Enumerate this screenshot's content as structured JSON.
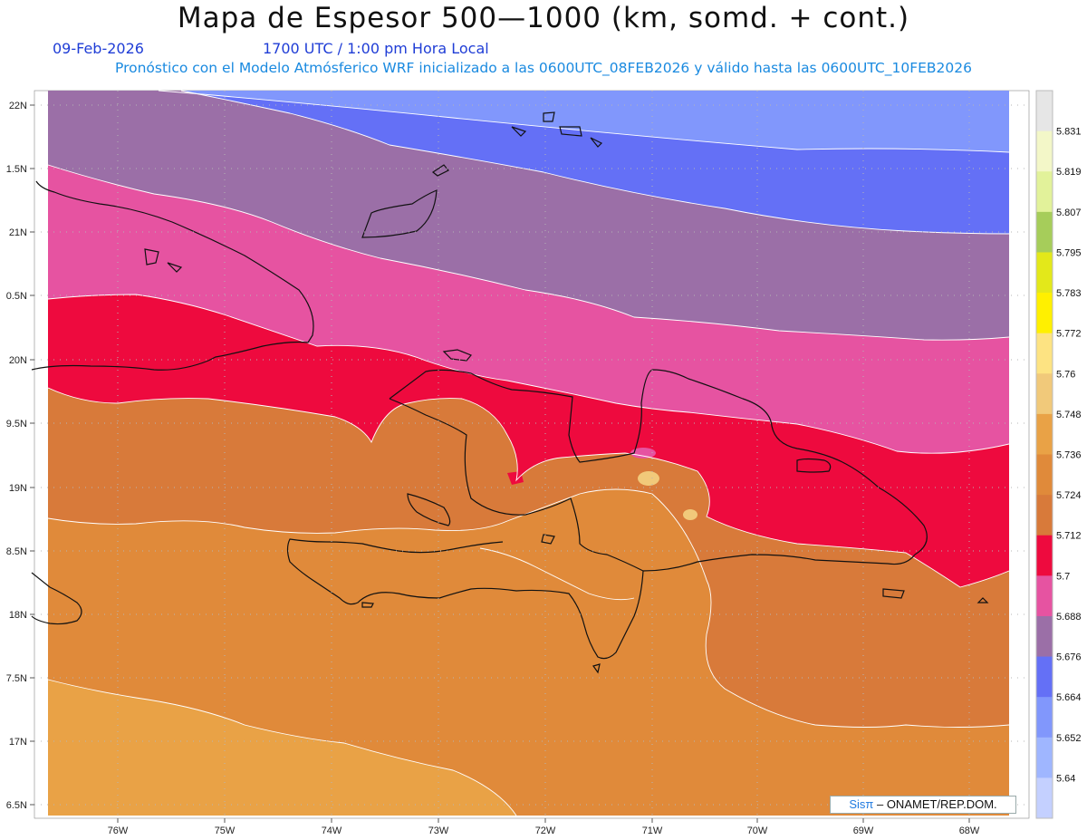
{
  "header": {
    "title": "Mapa de Espesor 500—1000 (km, somd. + cont.)",
    "date": "09-Feb-2026",
    "time": "1700 UTC / 1:00 pm Hora Local",
    "description": "Pronóstico con el Modelo Atmósferico WRF inicializado a las 0600UTC_08FEB2026 y válido hasta las  0600UTC_10FEB2026"
  },
  "axes": {
    "lat_labels": [
      "22N",
      "1.5N",
      "21N",
      "0.5N",
      "20N",
      "9.5N",
      "19N",
      "8.5N",
      "18N",
      "7.5N",
      "17N",
      "6.5N"
    ],
    "lon_labels": [
      "76W",
      "75W",
      "74W",
      "73W",
      "72W",
      "71W",
      "70W",
      "69W",
      "68W"
    ]
  },
  "colorbar": {
    "labels": [
      "5.831",
      "5.819",
      "5.807",
      "5.795",
      "5.783",
      "5.772",
      "5.76",
      "5.748",
      "5.736",
      "5.724",
      "5.712",
      "5.7",
      "5.688",
      "5.676",
      "5.664",
      "5.652",
      "5.64"
    ],
    "colors": [
      "#e6e6e6",
      "#f3f7c8",
      "#e2f29a",
      "#a6cd5a",
      "#e3e81a",
      "#fff000",
      "#fde382",
      "#f1c97a",
      "#e9a246",
      "#e08a3a",
      "#d87a3a",
      "#ee0a3e",
      "#e653a1",
      "#9b6fa7",
      "#6470f6",
      "#8197fc",
      "#9fb6ff",
      "#c4d0ff"
    ]
  },
  "credit": {
    "logo": "Sisπ",
    "text": " – ONAMET/REP.DOM."
  }
}
